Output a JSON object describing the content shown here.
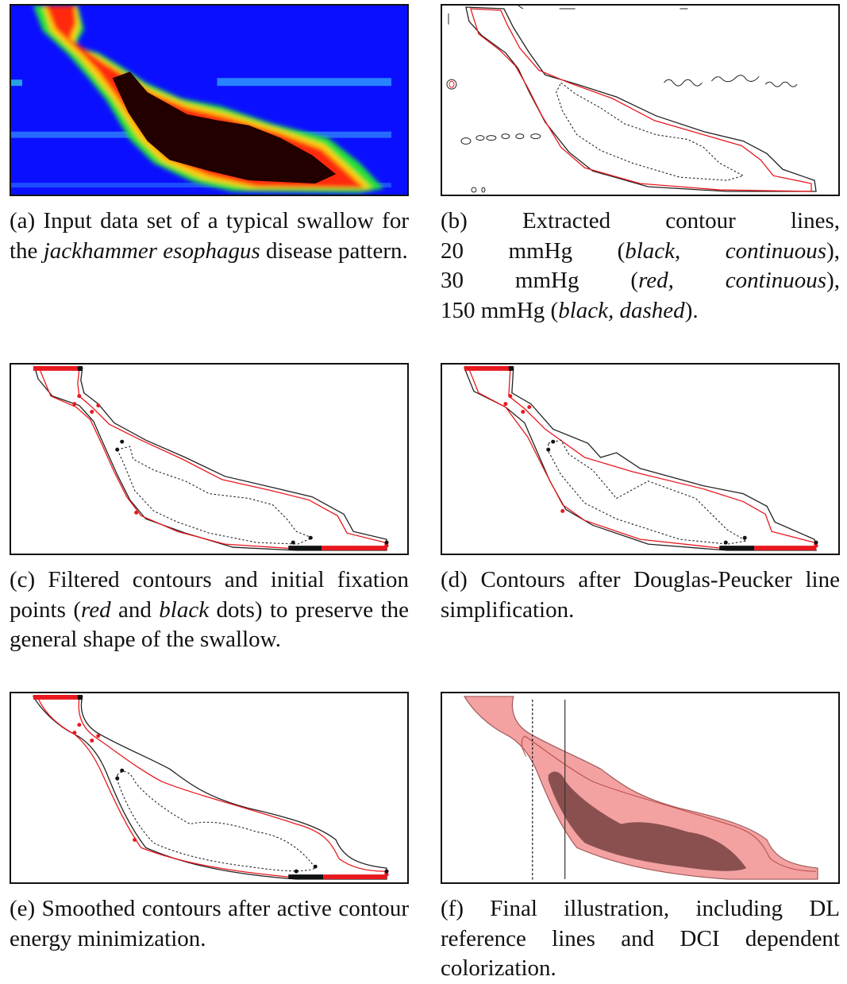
{
  "panels": [
    {
      "id": "a",
      "caption": {
        "pre": "(a) Input data set of a typical swallow for the ",
        "italic": "jackhammer esophagus",
        "post": " disease pattern."
      }
    },
    {
      "id": "b",
      "caption": {
        "line1": "(b) Extracted contour lines,",
        "line2_pre": "20 mmHg (",
        "line2_italic": "black, continuous",
        "line2_post": "),",
        "line3_pre": "30 mmHg (",
        "line3_italic": "red, continuous",
        "line3_post": "),",
        "line4_pre": "150 mmHg (",
        "line4_italic": "black, dashed",
        "line4_post": ")."
      }
    },
    {
      "id": "c",
      "caption": {
        "pre": "(c) Filtered contours and initial fixation points (",
        "italic1": "red",
        "mid": " and ",
        "italic2": "black",
        "post": " dots) to preserve the general shape of the swallow."
      }
    },
    {
      "id": "d",
      "caption": {
        "text": "(d) Contours after Douglas-Peucker line simplification."
      }
    },
    {
      "id": "e",
      "caption": {
        "text": "(e) Smoothed contours after active contour energy minimization."
      }
    },
    {
      "id": "f",
      "caption": {
        "text": "(f) Final illustration, including DL reference lines and DCI dependent colorization."
      }
    }
  ],
  "colors": {
    "heatmap_background": "#0a10ff",
    "contour_red": "#e8181e",
    "contour_black": "#222222",
    "fill_light": "#f3a1a1",
    "fill_dark": "#8a5050"
  }
}
